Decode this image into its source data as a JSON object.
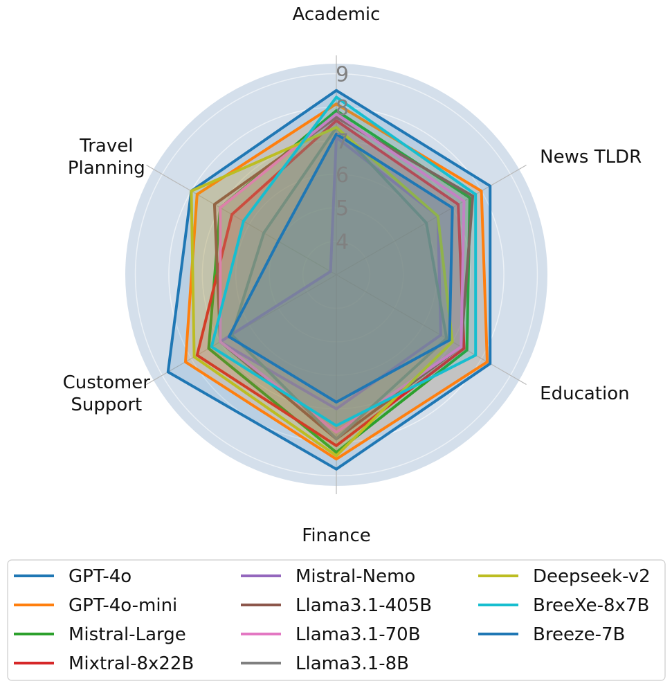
{
  "chart_data": {
    "type": "radar",
    "categories": [
      "Academic",
      "News TLDR",
      "Education",
      "Finance",
      "Customer Support",
      "Travel Planning"
    ],
    "category_lines": [
      [
        "Academic"
      ],
      [
        "News TLDR"
      ],
      [
        "Education"
      ],
      [
        "Finance"
      ],
      [
        "Customer",
        "Support"
      ],
      [
        "Travel",
        "Planning"
      ]
    ],
    "r_ticks": [
      "4",
      "5",
      "6",
      "7",
      "8",
      "9"
    ],
    "rlim": [
      3,
      9.3
    ],
    "grid": true,
    "legend_placement": "bottom",
    "legend_columns": 3,
    "background_color": "#d4dfeb",
    "series": [
      {
        "name": "GPT-4o",
        "color": "#1f77b4",
        "values": [
          8.5,
          8.3,
          8.3,
          8.8,
          8.8,
          8.0
        ]
      },
      {
        "name": "GPT-4o-mini",
        "color": "#ff7f0e",
        "values": [
          8.1,
          8.0,
          8.2,
          8.5,
          8.2,
          7.8
        ]
      },
      {
        "name": "Mistral-Large",
        "color": "#2ca02c",
        "values": [
          7.9,
          7.6,
          7.5,
          8.3,
          7.4,
          7.0
        ]
      },
      {
        "name": "Mixtral-8x22B",
        "color": "#d62728",
        "values": [
          7.6,
          7.2,
          7.4,
          8.1,
          7.8,
          6.6
        ]
      },
      {
        "name": "Mistral-Nemo",
        "color": "#9467bd",
        "values": [
          7.1,
          6.5,
          6.6,
          7.0,
          7.0,
          3.2
        ]
      },
      {
        "name": "Llama3.1-405B",
        "color": "#8c564b",
        "values": [
          7.7,
          7.7,
          7.3,
          7.9,
          7.0,
          7.2
        ]
      },
      {
        "name": "Llama3.1-70B",
        "color": "#e377c2",
        "values": [
          7.8,
          7.4,
          7.3,
          7.7,
          7.0,
          7.0
        ]
      },
      {
        "name": "Llama3.1-8B",
        "color": "#7f7f7f",
        "values": [
          7.4,
          6.1,
          6.8,
          7.9,
          6.6,
          5.5
        ]
      },
      {
        "name": "Deepseek-v2",
        "color": "#bcbd22",
        "values": [
          7.4,
          6.5,
          7.0,
          8.4,
          7.9,
          8.0
        ]
      },
      {
        "name": "BreeXe-8x7B",
        "color": "#17becf",
        "values": [
          8.3,
          7.8,
          7.8,
          7.5,
          7.3,
          6.2
        ]
      },
      {
        "name": "Breeze-7B",
        "color": "#1f77b4",
        "values": [
          7.2,
          7.0,
          6.9,
          6.8,
          6.7,
          5.0
        ]
      }
    ]
  }
}
